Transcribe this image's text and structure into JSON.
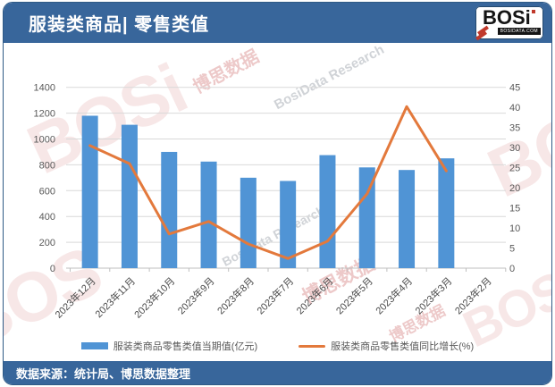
{
  "header": {
    "title": "服装类商品| 零售类值",
    "logo": {
      "text": "BOSi",
      "sub": "BOSIDATA.COM"
    }
  },
  "footer": {
    "source": "数据来源：统计局、博思数据整理"
  },
  "watermarks": {
    "logo": "BOSi",
    "logo_part": "BOS",
    "cn": "博思数据",
    "en": "BosiData Research"
  },
  "colors": {
    "header_bg": "#38669B",
    "bar": "#5094D5",
    "line": "#E3793C",
    "grid": "#D9D9D9",
    "axis_baseline": "#BFBFBF",
    "axis_text": "#595959",
    "watermark_red": "#BE3C3C",
    "watermark_gray": "#78828C"
  },
  "chart_data": {
    "type": "bar",
    "subtype": "bar+line dual axis",
    "title": "服装类商品| 零售类值",
    "categories": [
      "2023年12月",
      "2023年11月",
      "2023年10月",
      "2023年9月",
      "2023年8月",
      "2023年7月",
      "2023年6月",
      "2023年5月",
      "2023年4月",
      "2023年3月",
      "2023年2月"
    ],
    "series": [
      {
        "name": "服装类商品零售类值当期值(亿元)",
        "type": "bar",
        "axis": "left",
        "values": [
          1180,
          1110,
          900,
          825,
          700,
          675,
          875,
          780,
          760,
          850,
          null
        ]
      },
      {
        "name": "服装类商品零售类值同比增长(%)",
        "type": "line",
        "axis": "right",
        "values": [
          30.5,
          26.0,
          8.5,
          11.6,
          6.0,
          2.4,
          6.7,
          18.5,
          40.2,
          24.2,
          null
        ]
      }
    ],
    "left_axis": {
      "label": "当期值(亿元)",
      "min": 0,
      "max": 1400,
      "step": 200,
      "ticks": [
        0,
        200,
        400,
        600,
        800,
        1000,
        1200,
        1400
      ]
    },
    "right_axis": {
      "label": "同比增长(%)",
      "min": 0,
      "max": 45,
      "step": 5,
      "ticks": [
        0,
        5,
        10,
        15,
        20,
        25,
        30,
        35,
        40,
        45
      ]
    },
    "grid": true,
    "legend_position": "bottom",
    "xlabel": "",
    "ylabel": ""
  }
}
